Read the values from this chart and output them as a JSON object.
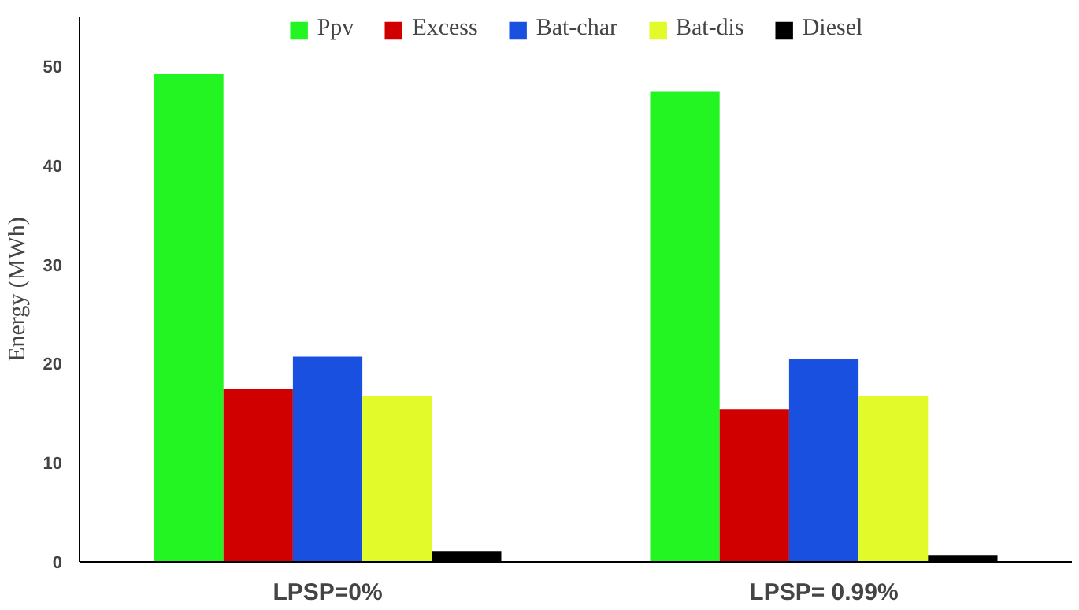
{
  "chart_data": {
    "type": "bar",
    "ylabel": "Energy (MWh)",
    "categories": [
      "LPSP=0%",
      "LPSP= 0.99%"
    ],
    "series": [
      {
        "name": "Ppv",
        "color": "#22f522",
        "values": [
          49.2,
          47.4
        ]
      },
      {
        "name": "Excess",
        "color": "#d00000",
        "values": [
          17.4,
          15.4
        ]
      },
      {
        "name": "Bat-char",
        "color": "#1a50e0",
        "values": [
          20.7,
          20.5
        ]
      },
      {
        "name": "Bat-dis",
        "color": "#e2fa2a",
        "values": [
          16.7,
          16.7
        ]
      },
      {
        "name": "Diesel",
        "color": "#000000",
        "values": [
          1.1,
          0.7
        ]
      }
    ],
    "ylim": [
      0,
      55
    ],
    "yticks": [
      0,
      10,
      20,
      30,
      40,
      50
    ],
    "grid": false,
    "legend": "top"
  }
}
